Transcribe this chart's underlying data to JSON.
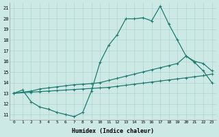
{
  "xlabel": "Humidex (Indice chaleur)",
  "bg_color": "#cce9e6",
  "line_color": "#1e7b6e",
  "grid_color": "#b0d4d0",
  "xlim": [
    -0.5,
    23.5
  ],
  "ylim": [
    10.5,
    21.5
  ],
  "xticks": [
    0,
    1,
    2,
    3,
    4,
    5,
    6,
    7,
    8,
    9,
    10,
    11,
    12,
    13,
    14,
    15,
    16,
    17,
    18,
    19,
    20,
    21,
    22,
    23
  ],
  "yticks": [
    11,
    12,
    13,
    14,
    15,
    16,
    17,
    18,
    19,
    20,
    21
  ],
  "curve1_x": [
    0,
    1,
    2,
    3,
    4,
    5,
    6,
    7,
    8,
    9,
    10,
    11,
    12,
    13,
    14,
    15,
    16,
    17,
    18,
    19,
    20,
    21,
    22,
    23
  ],
  "curve1_y": [
    13.0,
    13.3,
    12.2,
    11.7,
    11.5,
    11.2,
    11.0,
    10.8,
    11.2,
    13.2,
    15.9,
    17.5,
    18.5,
    20.0,
    20.0,
    20.1,
    19.8,
    21.2,
    19.5,
    18.0,
    16.5,
    15.9,
    15.1,
    14.0
  ],
  "curve2_x": [
    0,
    2,
    3,
    4,
    5,
    6,
    7,
    8,
    9,
    10,
    11,
    12,
    13,
    14,
    15,
    16,
    17,
    18,
    19,
    20,
    21,
    22,
    23
  ],
  "curve2_y": [
    13.0,
    13.2,
    13.4,
    13.5,
    13.6,
    13.7,
    13.8,
    13.85,
    13.9,
    14.0,
    14.2,
    14.4,
    14.6,
    14.8,
    15.0,
    15.2,
    15.4,
    15.6,
    15.8,
    16.5,
    16.0,
    15.8,
    15.1
  ],
  "curve3_x": [
    0,
    2,
    3,
    4,
    5,
    6,
    7,
    8,
    9,
    10,
    11,
    12,
    13,
    14,
    15,
    16,
    17,
    18,
    19,
    20,
    21,
    22,
    23
  ],
  "curve3_y": [
    13.0,
    13.1,
    13.15,
    13.2,
    13.25,
    13.3,
    13.35,
    13.4,
    13.45,
    13.5,
    13.55,
    13.65,
    13.75,
    13.85,
    13.95,
    14.05,
    14.15,
    14.25,
    14.35,
    14.45,
    14.55,
    14.65,
    14.8
  ]
}
